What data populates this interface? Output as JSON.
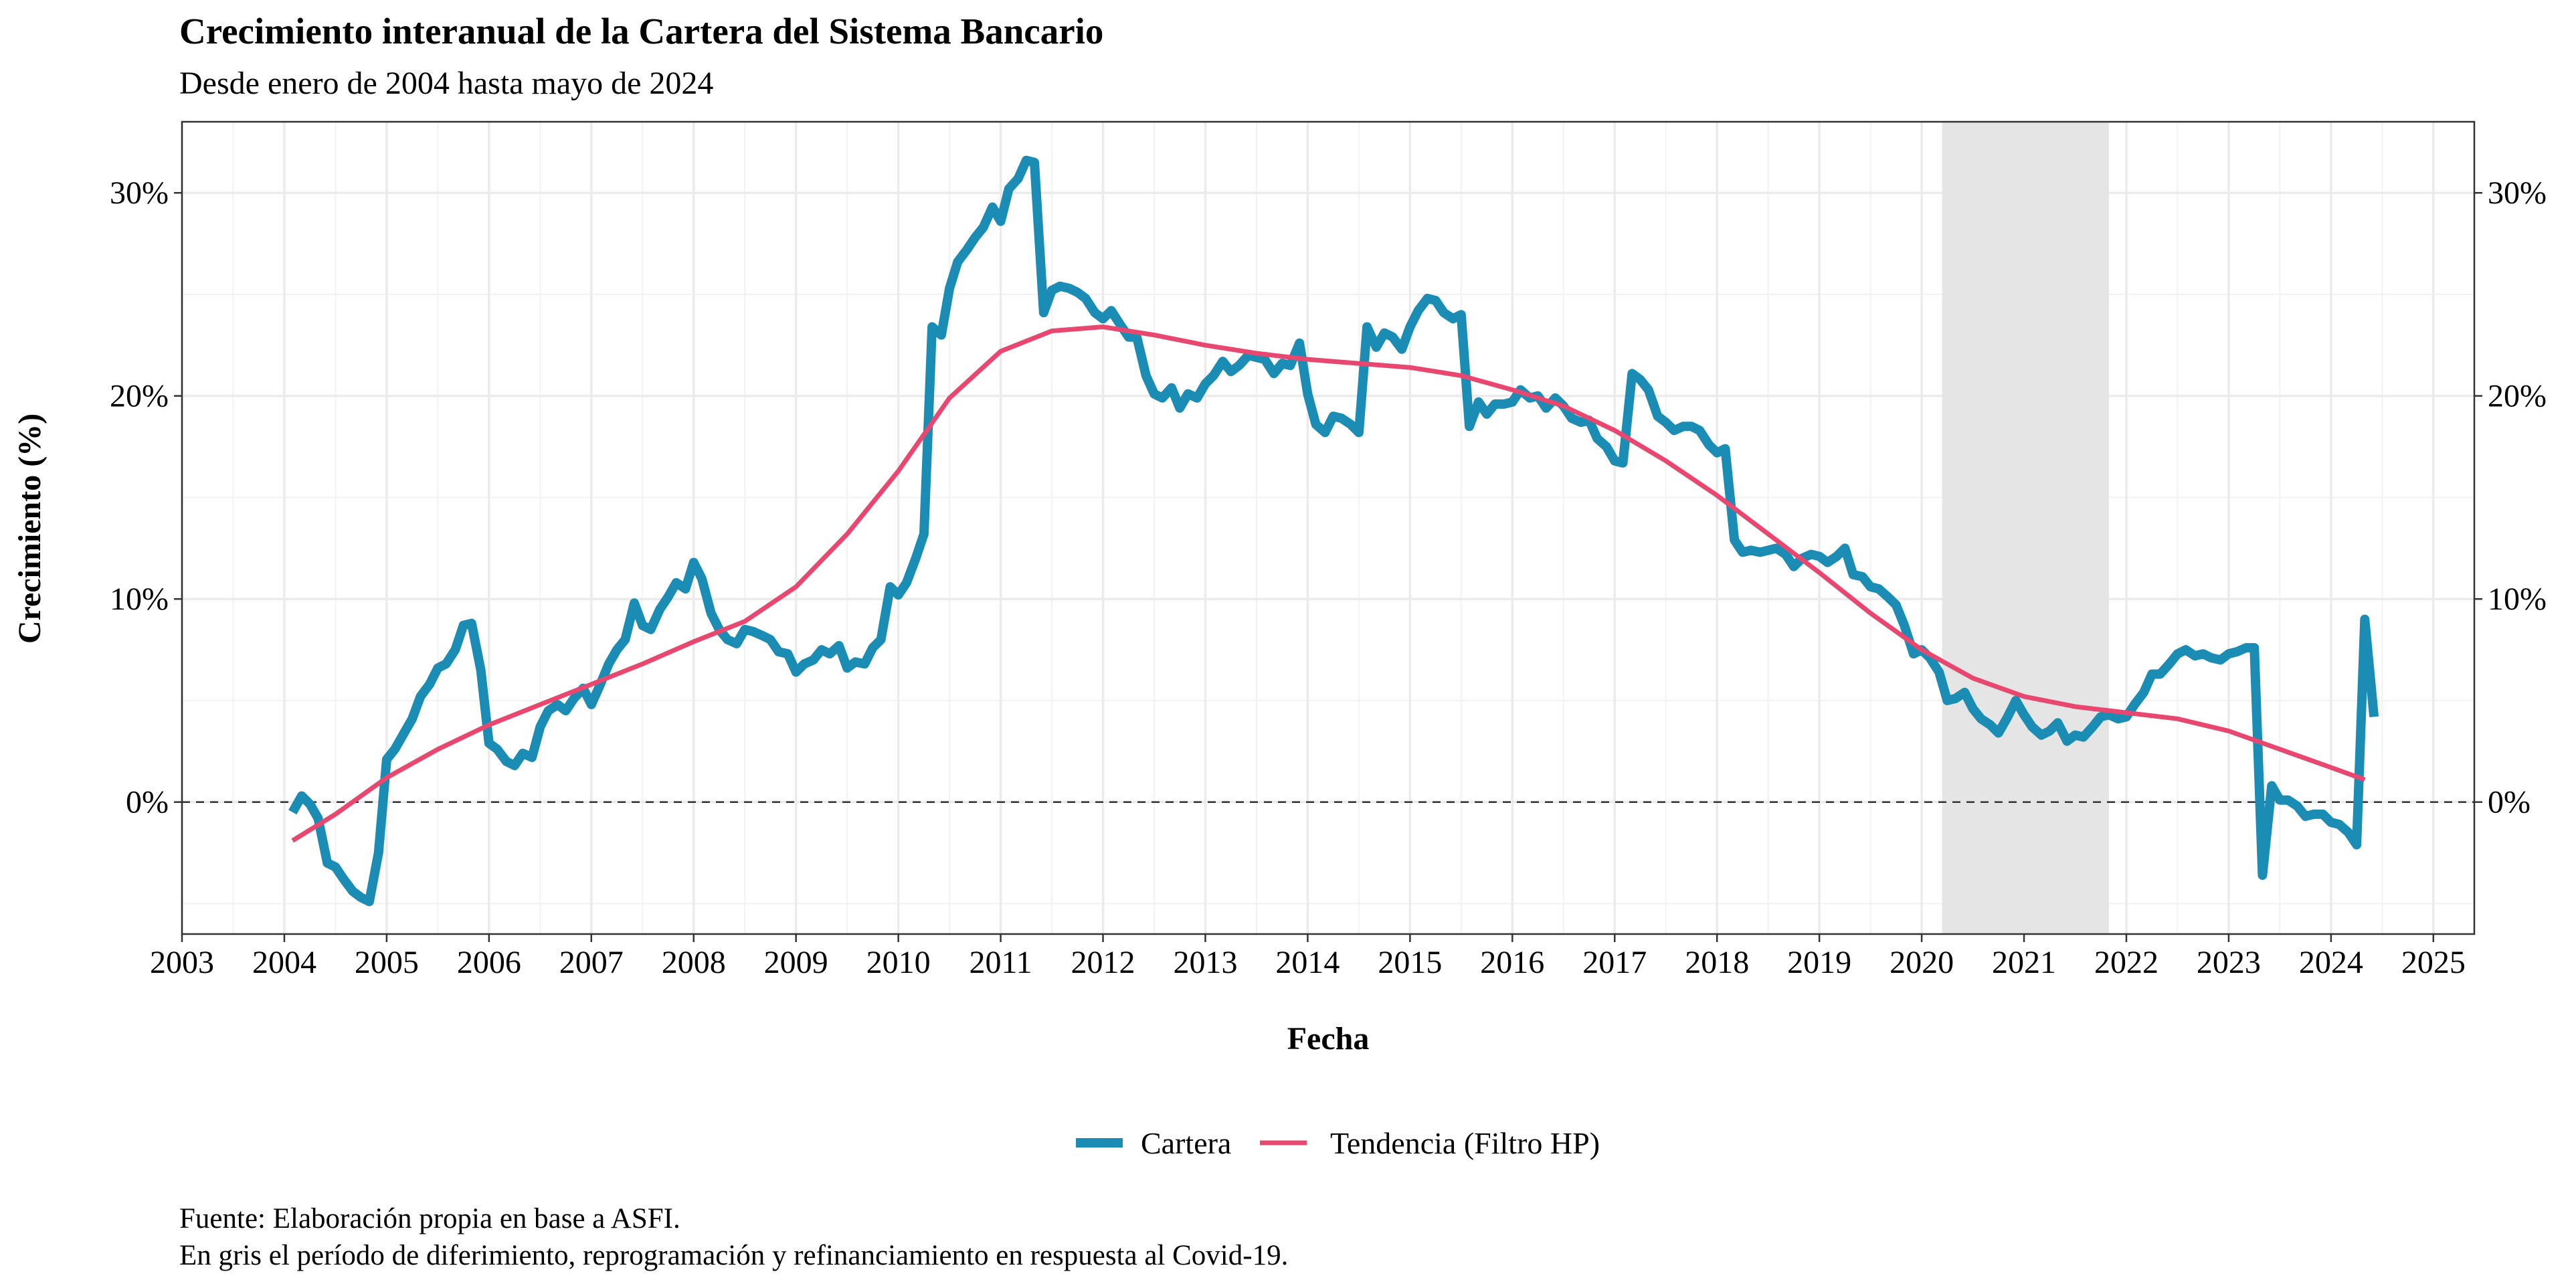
{
  "title": "Crecimiento interanual de la Cartera del Sistema Bancario",
  "subtitle": "Desde enero de 2004 hasta mayo de 2024",
  "caption": [
    "Fuente: Elaboración propia en base a ASFI.",
    "En gris el período de diferimiento, reprogramación y refinanciamiento en respuesta al Covid-19."
  ],
  "chart_data": {
    "type": "line",
    "xlabel": "Fecha",
    "ylabel": "Crecimiento (%)",
    "xlim": [
      2003,
      2025.4
    ],
    "ylim": [
      -6.5,
      33.5
    ],
    "x_ticks": [
      "2003",
      "2004",
      "2005",
      "2006",
      "2007",
      "2008",
      "2009",
      "2010",
      "2011",
      "2012",
      "2013",
      "2014",
      "2015",
      "2016",
      "2017",
      "2018",
      "2019",
      "2020",
      "2021",
      "2022",
      "2023",
      "2024",
      "2025"
    ],
    "y_ticks": [
      "0%",
      "10%",
      "20%",
      "30%"
    ],
    "y_tick_values": [
      0,
      10,
      20,
      30
    ],
    "secondary_y_axis": true,
    "grid": true,
    "legend_position": "bottom",
    "reference_line": {
      "y": 0,
      "style": "dashed",
      "color": "#333333"
    },
    "shaded_period": {
      "start": 2020.2,
      "end": 2021.83,
      "color": "#e5e5e5"
    },
    "series": [
      {
        "name": "Cartera",
        "color": "#1b8db5",
        "points": [
          [
            2004.08,
            -0.5
          ],
          [
            2004.17,
            0.3
          ],
          [
            2004.25,
            -0.1
          ],
          [
            2004.33,
            -0.8
          ],
          [
            2004.42,
            -3.0
          ],
          [
            2004.5,
            -3.2
          ],
          [
            2004.58,
            -3.8
          ],
          [
            2004.67,
            -4.4
          ],
          [
            2004.75,
            -4.7
          ],
          [
            2004.83,
            -4.9
          ],
          [
            2004.92,
            -2.5
          ],
          [
            2005.0,
            2.1
          ],
          [
            2005.08,
            2.6
          ],
          [
            2005.17,
            3.4
          ],
          [
            2005.25,
            4.1
          ],
          [
            2005.33,
            5.2
          ],
          [
            2005.42,
            5.8
          ],
          [
            2005.5,
            6.6
          ],
          [
            2005.58,
            6.8
          ],
          [
            2005.67,
            7.5
          ],
          [
            2005.75,
            8.7
          ],
          [
            2005.83,
            8.8
          ],
          [
            2005.92,
            6.5
          ],
          [
            2006.0,
            2.9
          ],
          [
            2006.08,
            2.6
          ],
          [
            2006.17,
            2.0
          ],
          [
            2006.25,
            1.8
          ],
          [
            2006.33,
            2.4
          ],
          [
            2006.42,
            2.2
          ],
          [
            2006.5,
            3.7
          ],
          [
            2006.58,
            4.5
          ],
          [
            2006.67,
            4.8
          ],
          [
            2006.75,
            4.5
          ],
          [
            2006.83,
            5.1
          ],
          [
            2006.92,
            5.6
          ],
          [
            2007.0,
            4.8
          ],
          [
            2007.08,
            5.7
          ],
          [
            2007.17,
            6.8
          ],
          [
            2007.25,
            7.5
          ],
          [
            2007.33,
            8.0
          ],
          [
            2007.42,
            9.8
          ],
          [
            2007.5,
            8.7
          ],
          [
            2007.58,
            8.5
          ],
          [
            2007.67,
            9.5
          ],
          [
            2007.75,
            10.1
          ],
          [
            2007.83,
            10.8
          ],
          [
            2007.92,
            10.5
          ],
          [
            2008.0,
            11.8
          ],
          [
            2008.08,
            11.0
          ],
          [
            2008.17,
            9.3
          ],
          [
            2008.25,
            8.5
          ],
          [
            2008.33,
            8.0
          ],
          [
            2008.42,
            7.8
          ],
          [
            2008.5,
            8.5
          ],
          [
            2008.58,
            8.4
          ],
          [
            2008.67,
            8.2
          ],
          [
            2008.75,
            8.0
          ],
          [
            2008.83,
            7.4
          ],
          [
            2008.92,
            7.3
          ],
          [
            2009.0,
            6.4
          ],
          [
            2009.08,
            6.8
          ],
          [
            2009.17,
            7.0
          ],
          [
            2009.25,
            7.5
          ],
          [
            2009.33,
            7.3
          ],
          [
            2009.42,
            7.7
          ],
          [
            2009.5,
            6.6
          ],
          [
            2009.58,
            6.9
          ],
          [
            2009.67,
            6.8
          ],
          [
            2009.75,
            7.6
          ],
          [
            2009.83,
            8.0
          ],
          [
            2009.92,
            10.6
          ],
          [
            2010.0,
            10.2
          ],
          [
            2010.08,
            10.8
          ],
          [
            2010.17,
            12.0
          ],
          [
            2010.25,
            13.2
          ],
          [
            2010.33,
            23.4
          ],
          [
            2010.42,
            23.0
          ],
          [
            2010.5,
            25.3
          ],
          [
            2010.58,
            26.6
          ],
          [
            2010.67,
            27.2
          ],
          [
            2010.75,
            27.8
          ],
          [
            2010.83,
            28.3
          ],
          [
            2010.92,
            29.3
          ],
          [
            2011.0,
            28.6
          ],
          [
            2011.08,
            30.2
          ],
          [
            2011.17,
            30.7
          ],
          [
            2011.25,
            31.6
          ],
          [
            2011.33,
            31.5
          ],
          [
            2011.42,
            24.1
          ],
          [
            2011.5,
            25.2
          ],
          [
            2011.58,
            25.4
          ],
          [
            2011.67,
            25.3
          ],
          [
            2011.75,
            25.1
          ],
          [
            2011.83,
            24.8
          ],
          [
            2011.92,
            24.1
          ],
          [
            2012.0,
            23.8
          ],
          [
            2012.08,
            24.2
          ],
          [
            2012.17,
            23.5
          ],
          [
            2012.25,
            22.9
          ],
          [
            2012.33,
            22.9
          ],
          [
            2012.42,
            21.0
          ],
          [
            2012.5,
            20.1
          ],
          [
            2012.58,
            19.9
          ],
          [
            2012.67,
            20.4
          ],
          [
            2012.75,
            19.4
          ],
          [
            2012.83,
            20.1
          ],
          [
            2012.92,
            19.9
          ],
          [
            2013.0,
            20.6
          ],
          [
            2013.08,
            21.0
          ],
          [
            2013.17,
            21.7
          ],
          [
            2013.25,
            21.2
          ],
          [
            2013.33,
            21.5
          ],
          [
            2013.42,
            22.0
          ],
          [
            2013.5,
            21.9
          ],
          [
            2013.58,
            21.8
          ],
          [
            2013.67,
            21.1
          ],
          [
            2013.75,
            21.6
          ],
          [
            2013.83,
            21.5
          ],
          [
            2013.92,
            22.6
          ],
          [
            2014.0,
            20.1
          ],
          [
            2014.08,
            18.6
          ],
          [
            2014.17,
            18.2
          ],
          [
            2014.25,
            19.0
          ],
          [
            2014.33,
            18.9
          ],
          [
            2014.42,
            18.6
          ],
          [
            2014.5,
            18.2
          ],
          [
            2014.58,
            23.4
          ],
          [
            2014.67,
            22.4
          ],
          [
            2014.75,
            23.1
          ],
          [
            2014.83,
            22.9
          ],
          [
            2014.92,
            22.3
          ],
          [
            2015.0,
            23.4
          ],
          [
            2015.08,
            24.2
          ],
          [
            2015.17,
            24.8
          ],
          [
            2015.25,
            24.7
          ],
          [
            2015.33,
            24.1
          ],
          [
            2015.42,
            23.8
          ],
          [
            2015.5,
            24.0
          ],
          [
            2015.58,
            18.5
          ],
          [
            2015.67,
            19.7
          ],
          [
            2015.75,
            19.1
          ],
          [
            2015.83,
            19.6
          ],
          [
            2015.92,
            19.6
          ],
          [
            2016.0,
            19.7
          ],
          [
            2016.08,
            20.3
          ],
          [
            2016.17,
            19.9
          ],
          [
            2016.25,
            20.0
          ],
          [
            2016.33,
            19.4
          ],
          [
            2016.42,
            19.9
          ],
          [
            2016.5,
            19.5
          ],
          [
            2016.58,
            18.9
          ],
          [
            2016.67,
            18.7
          ],
          [
            2016.75,
            18.8
          ],
          [
            2016.83,
            17.9
          ],
          [
            2016.92,
            17.5
          ],
          [
            2017.0,
            16.8
          ],
          [
            2017.08,
            16.7
          ],
          [
            2017.17,
            21.1
          ],
          [
            2017.25,
            20.8
          ],
          [
            2017.33,
            20.3
          ],
          [
            2017.42,
            19.0
          ],
          [
            2017.5,
            18.7
          ],
          [
            2017.58,
            18.3
          ],
          [
            2017.67,
            18.5
          ],
          [
            2017.75,
            18.5
          ],
          [
            2017.83,
            18.3
          ],
          [
            2017.92,
            17.6
          ],
          [
            2018.0,
            17.2
          ],
          [
            2018.08,
            17.4
          ],
          [
            2018.17,
            12.9
          ],
          [
            2018.25,
            12.3
          ],
          [
            2018.33,
            12.4
          ],
          [
            2018.42,
            12.3
          ],
          [
            2018.5,
            12.4
          ],
          [
            2018.58,
            12.5
          ],
          [
            2018.67,
            12.2
          ],
          [
            2018.75,
            11.6
          ],
          [
            2018.83,
            12.0
          ],
          [
            2018.92,
            12.2
          ],
          [
            2019.0,
            12.1
          ],
          [
            2019.08,
            11.8
          ],
          [
            2019.17,
            12.1
          ],
          [
            2019.25,
            12.5
          ],
          [
            2019.33,
            11.2
          ],
          [
            2019.42,
            11.1
          ],
          [
            2019.5,
            10.6
          ],
          [
            2019.58,
            10.5
          ],
          [
            2019.67,
            10.1
          ],
          [
            2019.75,
            9.7
          ],
          [
            2019.83,
            8.7
          ],
          [
            2019.92,
            7.3
          ],
          [
            2020.0,
            7.5
          ],
          [
            2020.08,
            7.1
          ],
          [
            2020.17,
            6.4
          ],
          [
            2020.25,
            5.0
          ],
          [
            2020.33,
            5.1
          ],
          [
            2020.42,
            5.4
          ],
          [
            2020.5,
            4.6
          ],
          [
            2020.58,
            4.1
          ],
          [
            2020.67,
            3.8
          ],
          [
            2020.75,
            3.4
          ],
          [
            2020.83,
            4.1
          ],
          [
            2020.92,
            5.0
          ],
          [
            2021.0,
            4.3
          ],
          [
            2021.08,
            3.7
          ],
          [
            2021.17,
            3.3
          ],
          [
            2021.25,
            3.5
          ],
          [
            2021.33,
            3.9
          ],
          [
            2021.42,
            3.0
          ],
          [
            2021.5,
            3.3
          ],
          [
            2021.58,
            3.2
          ],
          [
            2021.67,
            3.7
          ],
          [
            2021.75,
            4.2
          ],
          [
            2021.83,
            4.3
          ],
          [
            2021.92,
            4.1
          ],
          [
            2022.0,
            4.2
          ],
          [
            2022.08,
            4.8
          ],
          [
            2022.17,
            5.4
          ],
          [
            2022.25,
            6.3
          ],
          [
            2022.33,
            6.3
          ],
          [
            2022.42,
            6.8
          ],
          [
            2022.5,
            7.3
          ],
          [
            2022.58,
            7.5
          ],
          [
            2022.67,
            7.2
          ],
          [
            2022.75,
            7.3
          ],
          [
            2022.83,
            7.1
          ],
          [
            2022.92,
            7.0
          ],
          [
            2023.0,
            7.3
          ],
          [
            2023.08,
            7.4
          ],
          [
            2023.17,
            7.6
          ],
          [
            2023.25,
            7.6
          ],
          [
            2023.33,
            -3.6
          ],
          [
            2023.42,
            0.8
          ],
          [
            2023.5,
            0.1
          ],
          [
            2023.58,
            0.1
          ],
          [
            2023.67,
            -0.2
          ],
          [
            2023.75,
            -0.7
          ],
          [
            2023.83,
            -0.6
          ],
          [
            2023.92,
            -0.6
          ],
          [
            2024.0,
            -1.0
          ],
          [
            2024.08,
            -1.1
          ],
          [
            2024.17,
            -1.5
          ],
          [
            2024.25,
            -2.1
          ],
          [
            2024.33,
            9.0
          ],
          [
            2024.42,
            4.2
          ]
        ]
      },
      {
        "name": "Tendencia (Filtro HP)",
        "color": "#e8476f",
        "points": [
          [
            2004.08,
            -1.9
          ],
          [
            2004.5,
            -0.6
          ],
          [
            2005.0,
            1.2
          ],
          [
            2005.5,
            2.6
          ],
          [
            2006.0,
            3.8
          ],
          [
            2006.5,
            4.8
          ],
          [
            2007.0,
            5.8
          ],
          [
            2007.5,
            6.8
          ],
          [
            2008.0,
            7.9
          ],
          [
            2008.5,
            8.9
          ],
          [
            2009.0,
            10.6
          ],
          [
            2009.5,
            13.2
          ],
          [
            2010.0,
            16.3
          ],
          [
            2010.5,
            19.9
          ],
          [
            2011.0,
            22.2
          ],
          [
            2011.5,
            23.2
          ],
          [
            2012.0,
            23.4
          ],
          [
            2012.5,
            23.0
          ],
          [
            2013.0,
            22.5
          ],
          [
            2013.5,
            22.1
          ],
          [
            2014.0,
            21.8
          ],
          [
            2014.5,
            21.6
          ],
          [
            2015.0,
            21.4
          ],
          [
            2015.5,
            21.0
          ],
          [
            2016.0,
            20.3
          ],
          [
            2016.5,
            19.5
          ],
          [
            2017.0,
            18.3
          ],
          [
            2017.5,
            16.8
          ],
          [
            2018.0,
            15.1
          ],
          [
            2018.5,
            13.2
          ],
          [
            2019.0,
            11.3
          ],
          [
            2019.5,
            9.3
          ],
          [
            2020.0,
            7.5
          ],
          [
            2020.5,
            6.1
          ],
          [
            2021.0,
            5.2
          ],
          [
            2021.5,
            4.7
          ],
          [
            2022.0,
            4.4
          ],
          [
            2022.5,
            4.1
          ],
          [
            2023.0,
            3.5
          ],
          [
            2023.5,
            2.6
          ],
          [
            2024.0,
            1.7
          ],
          [
            2024.33,
            1.1
          ]
        ]
      }
    ]
  }
}
